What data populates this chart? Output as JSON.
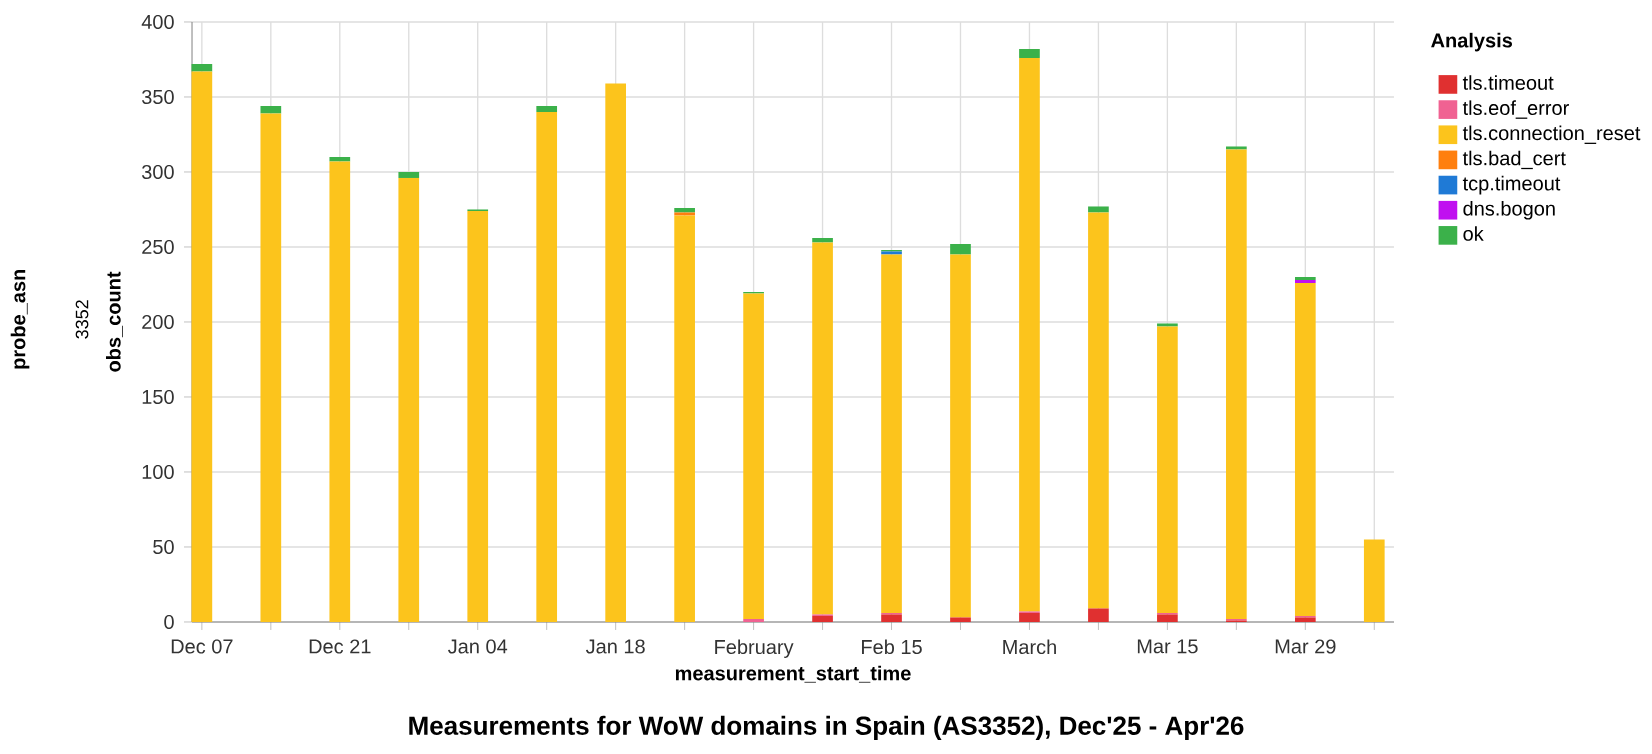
{
  "chart_data": {
    "type": "bar",
    "stacked": true,
    "title": "Measurements for WoW domains in Spain (AS3352), Dec'25 - Apr'26",
    "xlabel": "measurement_start_time",
    "ylabel": "obs_count",
    "legend_title": "Analysis",
    "annotations": [
      "probe_asn",
      "3352"
    ],
    "x": [
      "2025-12-07",
      "2025-12-14",
      "2025-12-21",
      "2025-12-28",
      "2026-01-04",
      "2026-01-11",
      "2026-01-18",
      "2026-01-25",
      "2026-02-01",
      "2026-02-08",
      "2026-02-15",
      "2026-02-22",
      "2026-03-01",
      "2026-03-08",
      "2026-03-15",
      "2026-03-22",
      "2026-03-29",
      "2026-04-05"
    ],
    "xlim": [
      "2025-12-06",
      "2026-04-07"
    ],
    "xticks": [
      {
        "value": "2025-12-07",
        "label": "Dec 07"
      },
      {
        "value": "2025-12-14",
        "label": null
      },
      {
        "value": "2025-12-21",
        "label": "Dec 21"
      },
      {
        "value": "2025-12-28",
        "label": null
      },
      {
        "value": "2026-01-04",
        "label": "Jan 04"
      },
      {
        "value": "2026-01-11",
        "label": null
      },
      {
        "value": "2026-01-18",
        "label": "Jan 18"
      },
      {
        "value": "2026-01-25",
        "label": null
      },
      {
        "value": "2026-02-01",
        "label": "February"
      },
      {
        "value": "2026-02-08",
        "label": null
      },
      {
        "value": "2026-02-15",
        "label": "Feb 15"
      },
      {
        "value": "2026-02-22",
        "label": null
      },
      {
        "value": "2026-03-01",
        "label": "March"
      },
      {
        "value": "2026-03-08",
        "label": null
      },
      {
        "value": "2026-03-15",
        "label": "Mar 15"
      },
      {
        "value": "2026-03-22",
        "label": null
      },
      {
        "value": "2026-03-29",
        "label": "Mar 29"
      },
      {
        "value": "2026-04-05",
        "label": null
      }
    ],
    "ylim": [
      0,
      400
    ],
    "yticks": [
      0,
      50,
      100,
      150,
      200,
      250,
      300,
      350,
      400
    ],
    "grid": true,
    "legend": "right",
    "series": [
      {
        "name": "tls.timeout",
        "color": "#e03030",
        "values": [
          null,
          null,
          null,
          null,
          null,
          null,
          null,
          null,
          null,
          4,
          5,
          3,
          6,
          9,
          5,
          1,
          3,
          null
        ]
      },
      {
        "name": "tls.eof_error",
        "color": "#f06292",
        "values": [
          null,
          null,
          null,
          null,
          null,
          null,
          null,
          null,
          2,
          1,
          1,
          null,
          1,
          null,
          1,
          1,
          1,
          null
        ]
      },
      {
        "name": "tls.connection_reset",
        "color": "#fcc41c",
        "values": [
          367,
          339,
          307,
          296,
          274,
          340,
          359,
          271,
          217,
          248,
          239,
          242,
          369,
          264,
          191,
          313,
          222,
          55
        ]
      },
      {
        "name": "tls.bad_cert",
        "color": "#ff7f0e",
        "values": [
          null,
          null,
          null,
          null,
          null,
          null,
          null,
          2,
          null,
          null,
          null,
          null,
          null,
          null,
          null,
          null,
          null,
          null
        ]
      },
      {
        "name": "tcp.timeout",
        "color": "#1f7ad6",
        "values": [
          null,
          null,
          null,
          null,
          null,
          null,
          null,
          null,
          null,
          null,
          2,
          null,
          null,
          null,
          null,
          null,
          null,
          null
        ]
      },
      {
        "name": "dns.bogon",
        "color": "#c010f0",
        "values": [
          null,
          null,
          null,
          null,
          null,
          null,
          null,
          null,
          null,
          null,
          null,
          null,
          null,
          null,
          null,
          null,
          2,
          null
        ]
      },
      {
        "name": "ok",
        "color": "#3bb14a",
        "values": [
          5,
          5,
          3,
          4,
          1,
          4,
          null,
          3,
          1,
          3,
          1,
          7,
          6,
          4,
          2,
          2,
          2,
          null
        ]
      }
    ]
  }
}
